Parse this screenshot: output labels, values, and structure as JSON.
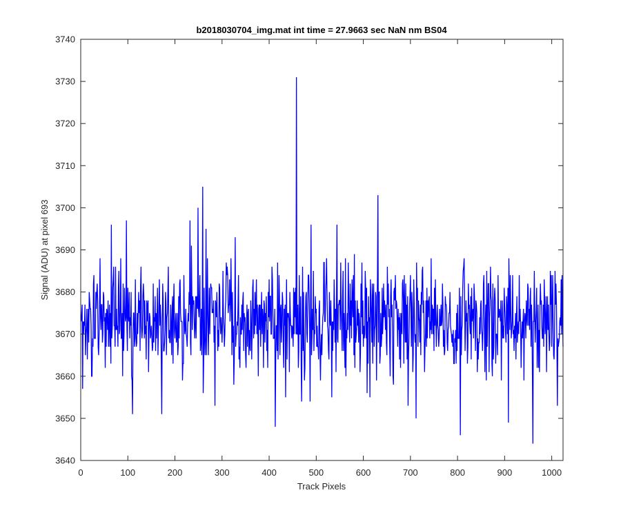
{
  "chart_data": {
    "type": "line",
    "title": "b2018030704_img.mat int time = 27.9663 sec  NaN nm BS04",
    "xlabel": "Track Pixels",
    "ylabel": "Signal (ADU) at pixel 693",
    "xlim": [
      0,
      1024
    ],
    "ylim": [
      3640,
      3740
    ],
    "xticks": [
      0,
      100,
      200,
      300,
      400,
      500,
      600,
      700,
      800,
      900,
      1000
    ],
    "yticks": [
      3640,
      3650,
      3660,
      3670,
      3680,
      3690,
      3700,
      3710,
      3720,
      3730,
      3740
    ],
    "grid": false,
    "box": true,
    "series_color": "#0000ff",
    "series": [
      {
        "n_points": 1024,
        "x_start": 1,
        "x_step": 1,
        "baseline": 3673,
        "noise_std": 7,
        "marked_points": [
          {
            "x": 65,
            "y": 3696
          },
          {
            "x": 97,
            "y": 3697
          },
          {
            "x": 110,
            "y": 3651
          },
          {
            "x": 172,
            "y": 3651
          },
          {
            "x": 249,
            "y": 3700
          },
          {
            "x": 259,
            "y": 3705
          },
          {
            "x": 259,
            "y": 3656
          },
          {
            "x": 285,
            "y": 3653
          },
          {
            "x": 413,
            "y": 3648
          },
          {
            "x": 458,
            "y": 3731
          },
          {
            "x": 489,
            "y": 3696
          },
          {
            "x": 544,
            "y": 3696
          },
          {
            "x": 631,
            "y": 3703
          },
          {
            "x": 712,
            "y": 3650
          },
          {
            "x": 806,
            "y": 3646
          },
          {
            "x": 908,
            "y": 3649
          },
          {
            "x": 960,
            "y": 3644
          },
          {
            "x": 1012,
            "y": 3653
          }
        ]
      }
    ]
  }
}
